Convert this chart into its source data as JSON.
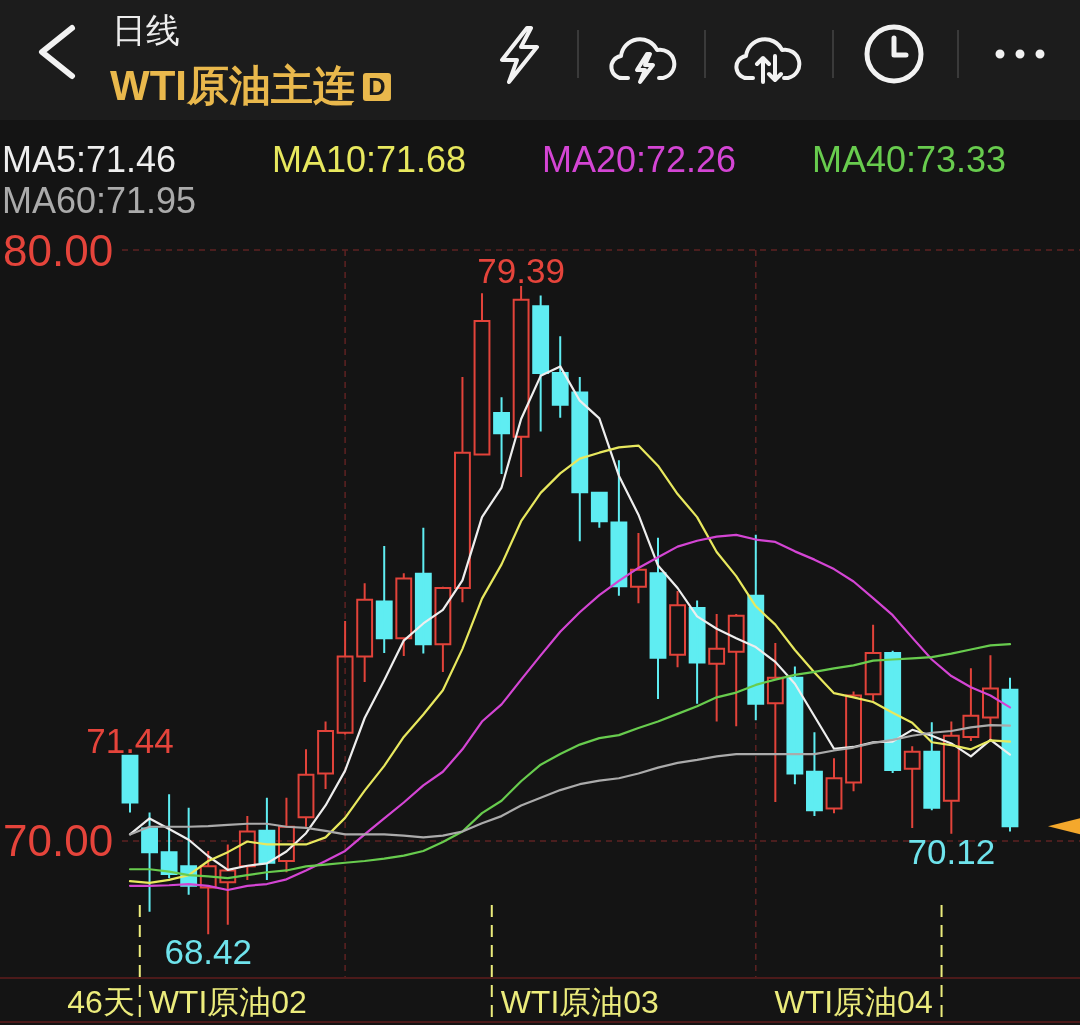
{
  "chart_data": {
    "type": "candlestick",
    "title": "WTI原油主连",
    "subtitle": "日线",
    "categories": [
      null,
      null,
      null,
      null,
      null,
      "WTI原油02",
      null,
      null,
      null,
      null,
      null,
      null,
      null,
      null,
      null,
      null,
      null,
      null,
      null,
      null,
      null,
      null,
      null,
      "WTI原油03",
      null,
      null,
      null,
      null,
      null,
      null,
      null,
      null,
      null,
      null,
      null,
      null,
      null,
      "WTI原油04",
      null,
      null,
      null,
      null,
      null,
      null,
      null,
      null
    ],
    "ohlc": [
      [
        71.44,
        71.44,
        70.48,
        70.65
      ],
      [
        70.21,
        70.48,
        68.8,
        69.81
      ],
      [
        69.81,
        70.79,
        69.37,
        69.44
      ],
      [
        69.57,
        70.56,
        69.09,
        69.24
      ],
      [
        69.21,
        69.83,
        68.42,
        69.57
      ],
      [
        69.3,
        69.94,
        68.58,
        69.5
      ],
      [
        69.57,
        70.42,
        69.34,
        70.16
      ],
      [
        70.17,
        70.73,
        69.34,
        69.63
      ],
      [
        69.66,
        70.73,
        69.47,
        70.24
      ],
      [
        70.4,
        71.55,
        70.24,
        71.12
      ],
      [
        71.14,
        72.02,
        70.88,
        71.86
      ],
      [
        71.83,
        73.72,
        71.8,
        73.12
      ],
      [
        73.12,
        74.36,
        72.69,
        74.08
      ],
      [
        74.05,
        74.99,
        73.18,
        73.43
      ],
      [
        73.43,
        74.53,
        73.13,
        74.44
      ],
      [
        74.52,
        75.3,
        73.17,
        73.33
      ],
      [
        73.33,
        74.3,
        72.86,
        74.28
      ],
      [
        74.28,
        77.85,
        74.04,
        76.57
      ],
      [
        76.54,
        79.27,
        76.54,
        78.8
      ],
      [
        77.24,
        77.51,
        76.21,
        76.9
      ],
      [
        76.84,
        79.39,
        76.16,
        79.16
      ],
      [
        79.05,
        79.23,
        76.93,
        77.92
      ],
      [
        77.92,
        78.54,
        77.16,
        77.38
      ],
      [
        77.59,
        77.85,
        75.07,
        75.9
      ],
      [
        75.89,
        75.89,
        75.3,
        75.41
      ],
      [
        75.39,
        76.44,
        74.15,
        74.31
      ],
      [
        74.3,
        75.21,
        74.02,
        74.59
      ],
      [
        74.53,
        75.13,
        72.4,
        73.1
      ],
      [
        73.15,
        74.23,
        72.94,
        73.99
      ],
      [
        73.94,
        74.07,
        72.32,
        73.02
      ],
      [
        73,
        73.84,
        72.02,
        73.25
      ],
      [
        73.2,
        73.84,
        71.94,
        73.81
      ],
      [
        74.15,
        75.18,
        72.04,
        72.32
      ],
      [
        72.33,
        73.35,
        70.66,
        72.76
      ],
      [
        72.76,
        72.95,
        70.96,
        71.14
      ],
      [
        71.17,
        71.84,
        70.42,
        70.52
      ],
      [
        70.55,
        71.4,
        70.47,
        71.06
      ],
      [
        70.99,
        72.53,
        70.84,
        72.46
      ],
      [
        72.48,
        73.66,
        72.37,
        73.18
      ],
      [
        73.18,
        73.22,
        71.15,
        71.2
      ],
      [
        71.22,
        71.6,
        70.22,
        71.51
      ],
      [
        71.51,
        72.01,
        70.52,
        70.56
      ],
      [
        70.68,
        72.02,
        70.12,
        71.78
      ],
      [
        71.76,
        72.92,
        71.69,
        72.12
      ],
      [
        72.09,
        73.14,
        71.71,
        72.58
      ],
      [
        72.56,
        72.76,
        70.16,
        70.25
      ]
    ],
    "colors": [
      "#5fedf2",
      "#5fedf2",
      "#5fedf2",
      "#5fedf2",
      "#e2433a",
      "#e2433a",
      "#e2433a",
      "#5fedf2",
      "#e2433a",
      "#e2433a",
      "#e2433a",
      "#e2433a",
      "#e2433a",
      "#5fedf2",
      "#e2433a",
      "#5fedf2",
      "#e2433a",
      "#e2433a",
      "#e2433a",
      "#5fedf2",
      "#e2433a",
      "#5fedf2",
      "#5fedf2",
      "#5fedf2",
      "#5fedf2",
      "#5fedf2",
      "#e2433a",
      "#5fedf2",
      "#e2433a",
      "#5fedf2",
      "#e2433a",
      "#e2433a",
      "#5fedf2",
      "#e2433a",
      "#5fedf2",
      "#5fedf2",
      "#e2433a",
      "#e2433a",
      "#e2433a",
      "#5fedf2",
      "#e2433a",
      "#5fedf2",
      "#e2433a",
      "#e2433a",
      "#e2433a",
      "#5fedf2"
    ],
    "series": [
      {
        "name": "MA5:71.46",
        "type": "line",
        "color": "#eeeeee",
        "values": [
          70.11,
          70.38,
          70.2,
          70.02,
          69.74,
          69.51,
          69.58,
          69.62,
          69.82,
          70.13,
          70.6,
          71.19,
          72.08,
          72.72,
          73.39,
          73.68,
          73.91,
          74.41,
          75.48,
          75.98,
          77.14,
          77.87,
          78.03,
          77.45,
          77.15,
          76.18,
          75.52,
          74.66,
          74.28,
          73.8,
          73.59,
          73.43,
          73.28,
          73.03,
          72.66,
          72.11,
          71.56,
          71.59,
          71.67,
          71.68,
          71.88,
          71.78,
          71.65,
          71.43,
          71.71,
          71.46
        ]
      },
      {
        "name": "MA10:71.68",
        "type": "line",
        "color": "#e8e85e",
        "values": [
          69.32,
          69.29,
          69.34,
          69.42,
          69.66,
          69.81,
          69.99,
          69.94,
          69.94,
          69.94,
          70.06,
          70.39,
          70.85,
          71.27,
          71.76,
          72.14,
          72.55,
          73.25,
          74.1,
          74.68,
          75.41,
          75.89,
          76.22,
          76.47,
          76.57,
          76.66,
          76.69,
          76.35,
          75.87,
          75.48,
          74.89,
          74.48,
          73.97,
          73.66,
          73.23,
          72.85,
          72.5,
          72.43,
          72.35,
          72.17,
          72,
          71.67,
          71.62,
          71.55,
          71.7,
          71.68
        ]
      },
      {
        "name": "MA20:72.26",
        "type": "line",
        "color": "#d445d4",
        "values": [
          69.24,
          69.24,
          69.25,
          69.27,
          69.24,
          69.17,
          69.24,
          69.27,
          69.35,
          69.5,
          69.66,
          69.83,
          70.11,
          70.38,
          70.65,
          70.94,
          71.17,
          71.55,
          72.02,
          72.31,
          72.73,
          73.14,
          73.54,
          73.87,
          74.16,
          74.4,
          74.62,
          74.8,
          74.98,
          75.08,
          75.15,
          75.18,
          75.1,
          75.06,
          74.9,
          74.76,
          74.6,
          74.39,
          74.11,
          73.82,
          73.44,
          73.07,
          72.79,
          72.6,
          72.46,
          72.26
        ]
      },
      {
        "name": "MA40:73.33",
        "type": "line",
        "color": "#68cc4e",
        "values": [
          69.52,
          69.52,
          69.48,
          69.42,
          69.4,
          69.37,
          69.42,
          69.47,
          69.5,
          69.57,
          69.6,
          69.63,
          69.66,
          69.7,
          69.75,
          69.83,
          69.98,
          70.16,
          70.47,
          70.68,
          71.01,
          71.29,
          71.47,
          71.63,
          71.74,
          71.79,
          71.91,
          72.02,
          72.15,
          72.28,
          72.43,
          72.51,
          72.64,
          72.73,
          72.81,
          72.86,
          72.92,
          72.97,
          73.05,
          73.07,
          73.09,
          73.11,
          73.17,
          73.24,
          73.31,
          73.33
        ]
      },
      {
        "name": "MA60:71.95",
        "type": "line",
        "color": "#ababab",
        "values": [
          70.11,
          70.24,
          70.24,
          70.24,
          70.25,
          70.27,
          70.29,
          70.29,
          70.24,
          70.22,
          70.17,
          70.11,
          70.11,
          70.11,
          70.09,
          70.06,
          70.09,
          70.16,
          70.3,
          70.42,
          70.6,
          70.73,
          70.86,
          70.96,
          71.02,
          71.06,
          71.14,
          71.24,
          71.32,
          71.37,
          71.43,
          71.47,
          71.47,
          71.47,
          71.47,
          71.47,
          71.53,
          71.58,
          71.66,
          71.71,
          71.78,
          71.83,
          71.86,
          71.92,
          71.96,
          71.95
        ]
      }
    ],
    "ylim": [
      67.68,
      80
    ],
    "yticks": [
      {
        "value": 80,
        "label": "80.00"
      },
      {
        "value": 70,
        "label": "70.00"
      }
    ],
    "grid": true,
    "legend": "top",
    "annotations": [
      {
        "text": "79.39",
        "y": 79.39
      },
      {
        "text": "71.44",
        "y": 71.44
      },
      {
        "text": "68.42",
        "y": 68.42
      },
      {
        "text": "70.12",
        "y": 70.12
      },
      "46天",
      "D"
    ]
  }
}
